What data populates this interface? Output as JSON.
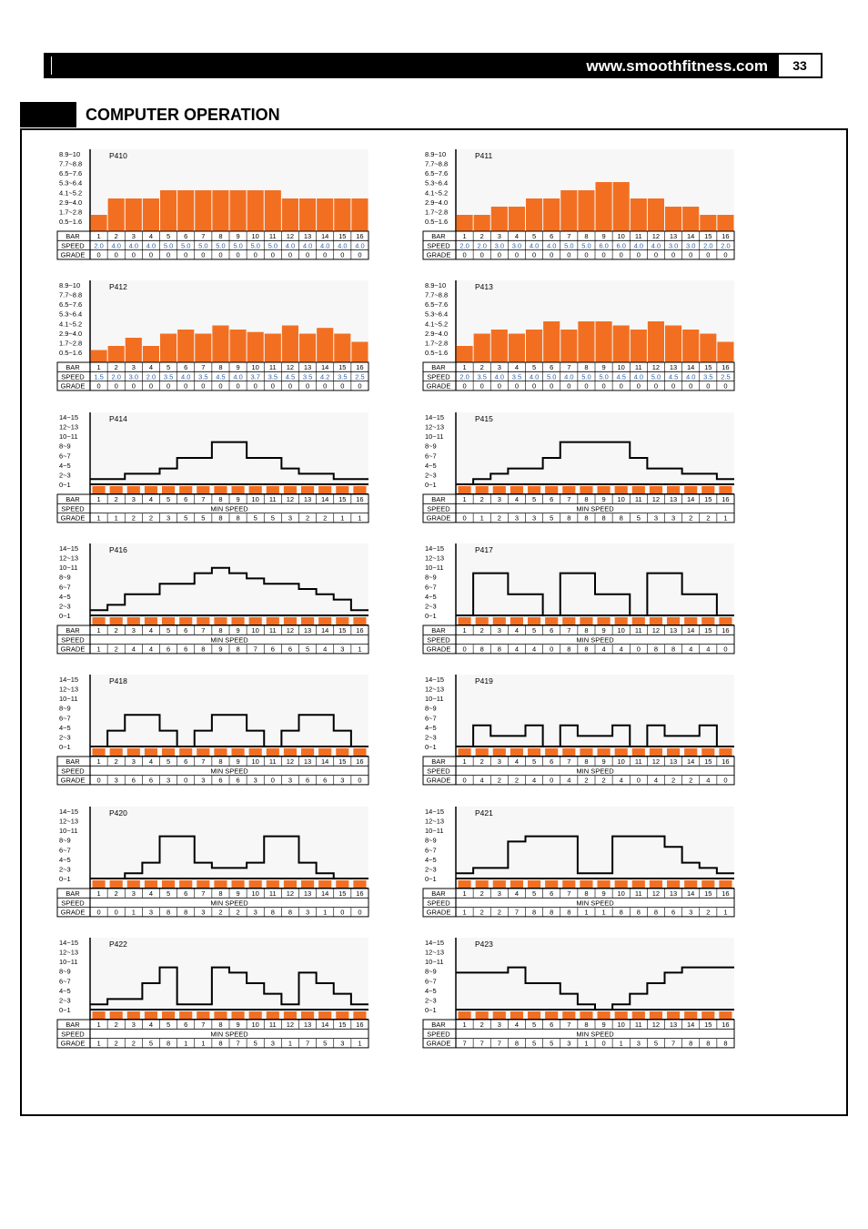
{
  "header": {
    "url": "www.smoothfitness.com",
    "page_number": "33"
  },
  "section": {
    "title": "COMPUTER OPERATION"
  },
  "colors": {
    "bar": "#f26f22",
    "panel": "#f7f7f7",
    "speed_text": "#2b5fa8",
    "line": "#000000"
  },
  "bar_numbers": [
    "1",
    "2",
    "3",
    "4",
    "5",
    "6",
    "7",
    "8",
    "9",
    "10",
    "11",
    "12",
    "13",
    "14",
    "15",
    "16"
  ],
  "row_labels": {
    "bar": "BAR",
    "speed": "SPEED",
    "grade": "GRADE"
  },
  "min_speed_label": "MIN SPEED",
  "speed_levels": [
    "8.9~10",
    "7.7~8.8",
    "6.5~7.6",
    "5.3~6.4",
    "4.1~5.2",
    "2.9~4.0",
    "1.7~2.8",
    "0.5~1.6"
  ],
  "grade_levels": [
    "14~15",
    "12~13",
    "10~11",
    "8~9",
    "6~7",
    "4~5",
    "2~3",
    "0~1"
  ],
  "programs": [
    {
      "name": "P410",
      "type": "speed",
      "speed": [
        "2.0",
        "4.0",
        "4.0",
        "4.0",
        "5.0",
        "5.0",
        "5.0",
        "5.0",
        "5.0",
        "5.0",
        "5.0",
        "4.0",
        "4.0",
        "4.0",
        "4.0",
        "4.0"
      ],
      "grade": [
        "0",
        "0",
        "0",
        "0",
        "0",
        "0",
        "0",
        "0",
        "0",
        "0",
        "0",
        "0",
        "0",
        "0",
        "0",
        "0"
      ]
    },
    {
      "name": "P411",
      "type": "speed",
      "speed": [
        "2.0",
        "2.0",
        "3.0",
        "3.0",
        "4.0",
        "4.0",
        "5.0",
        "5.0",
        "6.0",
        "6.0",
        "4.0",
        "4.0",
        "3.0",
        "3.0",
        "2.0",
        "2.0"
      ],
      "grade": [
        "0",
        "0",
        "0",
        "0",
        "0",
        "0",
        "0",
        "0",
        "0",
        "0",
        "0",
        "0",
        "0",
        "0",
        "0",
        "0"
      ]
    },
    {
      "name": "P412",
      "type": "speed",
      "speed": [
        "1.5",
        "2.0",
        "3.0",
        "2.0",
        "3.5",
        "4.0",
        "3.5",
        "4.5",
        "4.0",
        "3.7",
        "3.5",
        "4.5",
        "3.5",
        "4.2",
        "3.5",
        "2.5"
      ],
      "grade": [
        "0",
        "0",
        "0",
        "0",
        "0",
        "0",
        "0",
        "0",
        "0",
        "0",
        "0",
        "0",
        "0",
        "0",
        "0",
        "0"
      ]
    },
    {
      "name": "P413",
      "type": "speed",
      "speed": [
        "2.0",
        "3.5",
        "4.0",
        "3.5",
        "4.0",
        "5.0",
        "4.0",
        "5.0",
        "5.0",
        "4.5",
        "4.0",
        "5.0",
        "4.5",
        "4.0",
        "3.5",
        "2.5"
      ],
      "grade": [
        "0",
        "0",
        "0",
        "0",
        "0",
        "0",
        "0",
        "0",
        "0",
        "0",
        "0",
        "0",
        "0",
        "0",
        "0",
        "0"
      ]
    },
    {
      "name": "P414",
      "type": "grade",
      "grade": [
        "1",
        "1",
        "2",
        "2",
        "3",
        "5",
        "5",
        "8",
        "8",
        "5",
        "5",
        "3",
        "2",
        "2",
        "1",
        "1"
      ]
    },
    {
      "name": "P415",
      "type": "grade",
      "grade": [
        "0",
        "1",
        "2",
        "3",
        "3",
        "5",
        "8",
        "8",
        "8",
        "8",
        "5",
        "3",
        "3",
        "2",
        "2",
        "1"
      ]
    },
    {
      "name": "P416",
      "type": "grade",
      "grade": [
        "1",
        "2",
        "4",
        "4",
        "6",
        "6",
        "8",
        "9",
        "8",
        "7",
        "6",
        "6",
        "5",
        "4",
        "3",
        "1"
      ]
    },
    {
      "name": "P417",
      "type": "grade",
      "grade": [
        "0",
        "8",
        "8",
        "4",
        "4",
        "0",
        "8",
        "8",
        "4",
        "4",
        "0",
        "8",
        "8",
        "4",
        "4",
        "0"
      ]
    },
    {
      "name": "P418",
      "type": "grade",
      "grade": [
        "0",
        "3",
        "6",
        "6",
        "3",
        "0",
        "3",
        "6",
        "6",
        "3",
        "0",
        "3",
        "6",
        "6",
        "3",
        "0"
      ]
    },
    {
      "name": "P419",
      "type": "grade",
      "grade": [
        "0",
        "4",
        "2",
        "2",
        "4",
        "0",
        "4",
        "2",
        "2",
        "4",
        "0",
        "4",
        "2",
        "2",
        "4",
        "0"
      ]
    },
    {
      "name": "P420",
      "type": "grade",
      "grade": [
        "0",
        "0",
        "1",
        "3",
        "8",
        "8",
        "3",
        "2",
        "2",
        "3",
        "8",
        "8",
        "3",
        "1",
        "0",
        "0"
      ]
    },
    {
      "name": "P421",
      "type": "grade",
      "grade": [
        "1",
        "2",
        "2",
        "7",
        "8",
        "8",
        "8",
        "1",
        "1",
        "8",
        "8",
        "8",
        "6",
        "3",
        "2",
        "1"
      ]
    },
    {
      "name": "P422",
      "type": "grade",
      "grade": [
        "1",
        "2",
        "2",
        "5",
        "8",
        "1",
        "1",
        "8",
        "7",
        "5",
        "3",
        "1",
        "7",
        "5",
        "3",
        "1"
      ]
    },
    {
      "name": "P423",
      "type": "grade",
      "grade": [
        "7",
        "7",
        "7",
        "8",
        "5",
        "5",
        "3",
        "1",
        "0",
        "1",
        "3",
        "5",
        "7",
        "8",
        "8",
        "8"
      ]
    }
  ]
}
